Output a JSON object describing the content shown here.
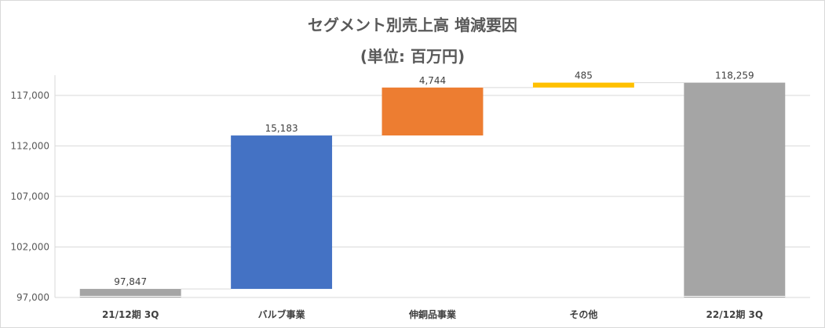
{
  "chart_data": {
    "type": "bar",
    "subtype": "waterfall",
    "title": "セグメント別売上高 増減要因",
    "subtitle": "(単位: 百万円)",
    "categories": [
      "21/12期 3Q",
      "バルブ事業",
      "伸銅品事業",
      "その他",
      "22/12期 3Q"
    ],
    "values": [
      97847,
      15183,
      4744,
      485,
      118259
    ],
    "data_labels": [
      "97,847",
      "15,183",
      "4,744",
      "485",
      "118,259"
    ],
    "kinds": [
      "total",
      "increase",
      "increase",
      "increase",
      "total"
    ],
    "colors": [
      "#a5a5a5",
      "#4472c4",
      "#ed7d31",
      "#ffc000",
      "#a5a5a5"
    ],
    "ylim": [
      97000,
      119000
    ],
    "yticks": [
      97000,
      102000,
      107000,
      112000,
      117000
    ],
    "ytick_labels": [
      "97,000",
      "102,000",
      "107,000",
      "112,000",
      "117,000"
    ],
    "grid": true,
    "legend": "none"
  }
}
